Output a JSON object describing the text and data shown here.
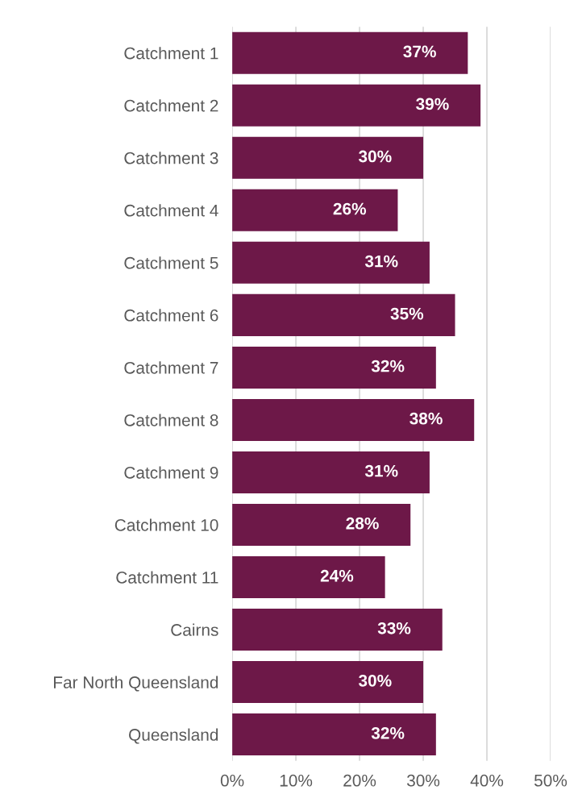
{
  "chart_data": {
    "type": "bar",
    "orientation": "horizontal",
    "categories": [
      "Catchment 1",
      "Catchment 2",
      "Catchment 3",
      "Catchment 4",
      "Catchment 5",
      "Catchment 6",
      "Catchment 7",
      "Catchment 8",
      "Catchment 9",
      "Catchment 10",
      "Catchment 11",
      "Cairns",
      "Far North Queensland",
      "Queensland"
    ],
    "values": [
      37,
      39,
      30,
      26,
      31,
      35,
      32,
      38,
      31,
      28,
      24,
      33,
      30,
      32
    ],
    "value_labels": [
      "37%",
      "39%",
      "30%",
      "26%",
      "31%",
      "35%",
      "32%",
      "38%",
      "31%",
      "28%",
      "24%",
      "33%",
      "30%",
      "32%"
    ],
    "color": "#6d1848",
    "xlim": [
      0,
      50
    ],
    "xticks": [
      {
        "value": 0,
        "label": "0%"
      },
      {
        "value": 10,
        "label": "10%"
      },
      {
        "value": 20,
        "label": "20%"
      },
      {
        "value": 30,
        "label": "30%"
      },
      {
        "value": 40,
        "label": "40%"
      },
      {
        "value": 50,
        "label": "50%"
      }
    ],
    "grid": "x"
  }
}
